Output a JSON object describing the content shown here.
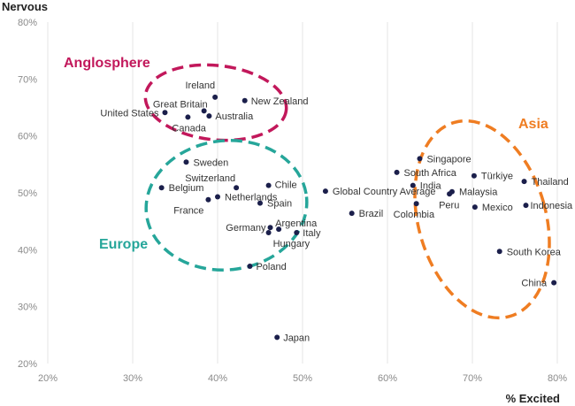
{
  "chart_data": {
    "type": "scatter",
    "ylabel": "Nervous",
    "xlabel": "% Excited",
    "xlim": [
      20,
      80
    ],
    "ylim": [
      20,
      80
    ],
    "x_ticks": [
      "20%",
      "30%",
      "40%",
      "50%",
      "60%",
      "70%",
      "80%"
    ],
    "y_ticks": [
      "20%",
      "30%",
      "40%",
      "50%",
      "60%",
      "70%",
      "80%"
    ],
    "grid": "vertical",
    "point_color": "#1b1f4b",
    "points": [
      {
        "label": "Ireland",
        "x": 39.7,
        "y": 66.8
      },
      {
        "label": "New Zealand",
        "x": 43.2,
        "y": 66.2
      },
      {
        "label": "Great Britain",
        "x": 38.4,
        "y": 64.4
      },
      {
        "label": "United States",
        "x": 33.8,
        "y": 64.1
      },
      {
        "label": "Australia",
        "x": 39.0,
        "y": 63.5
      },
      {
        "label": "Canada",
        "x": 36.5,
        "y": 63.3
      },
      {
        "label": "Sweden",
        "x": 36.3,
        "y": 55.4
      },
      {
        "label": "Switzerland",
        "x": 42.2,
        "y": 50.9
      },
      {
        "label": "Chile",
        "x": 46.0,
        "y": 51.3
      },
      {
        "label": "Belgium",
        "x": 33.4,
        "y": 50.9
      },
      {
        "label": "Netherlands",
        "x": 40.0,
        "y": 49.3
      },
      {
        "label": "France",
        "x": 38.9,
        "y": 48.8
      },
      {
        "label": "Spain",
        "x": 45.0,
        "y": 48.2
      },
      {
        "label": "Germany",
        "x": 46.2,
        "y": 43.9
      },
      {
        "label": "Argentina",
        "x": 47.2,
        "y": 43.6
      },
      {
        "label": "Italy",
        "x": 49.3,
        "y": 43.0
      },
      {
        "label": "Hungary",
        "x": 46.0,
        "y": 43.0
      },
      {
        "label": "Poland",
        "x": 43.8,
        "y": 37.1
      },
      {
        "label": "Japan",
        "x": 47.0,
        "y": 24.6
      },
      {
        "label": "Global Country Average",
        "x": 52.7,
        "y": 50.3
      },
      {
        "label": "Brazil",
        "x": 55.8,
        "y": 46.4
      },
      {
        "label": "Singapore",
        "x": 63.8,
        "y": 56.0
      },
      {
        "label": "South Africa",
        "x": 61.1,
        "y": 53.6
      },
      {
        "label": "India",
        "x": 63.0,
        "y": 51.3
      },
      {
        "label": "Colombia",
        "x": 63.4,
        "y": 48.1
      },
      {
        "label": "Türkiye",
        "x": 70.2,
        "y": 53.0
      },
      {
        "label": "Malaysia",
        "x": 67.6,
        "y": 50.2
      },
      {
        "label": "Peru",
        "x": 67.3,
        "y": 49.8
      },
      {
        "label": "Mexico",
        "x": 70.3,
        "y": 47.5
      },
      {
        "label": "Thailand",
        "x": 76.1,
        "y": 52.0
      },
      {
        "label": "Indonesia",
        "x": 76.3,
        "y": 47.8
      },
      {
        "label": "South Korea",
        "x": 73.2,
        "y": 39.7
      },
      {
        "label": "China",
        "x": 79.6,
        "y": 34.2
      }
    ],
    "groups": [
      {
        "label": "Anglosphere",
        "color": "#c2185b"
      },
      {
        "label": "Europe",
        "color": "#26a69a"
      },
      {
        "label": "Asia",
        "color": "#ef7d22"
      }
    ]
  }
}
